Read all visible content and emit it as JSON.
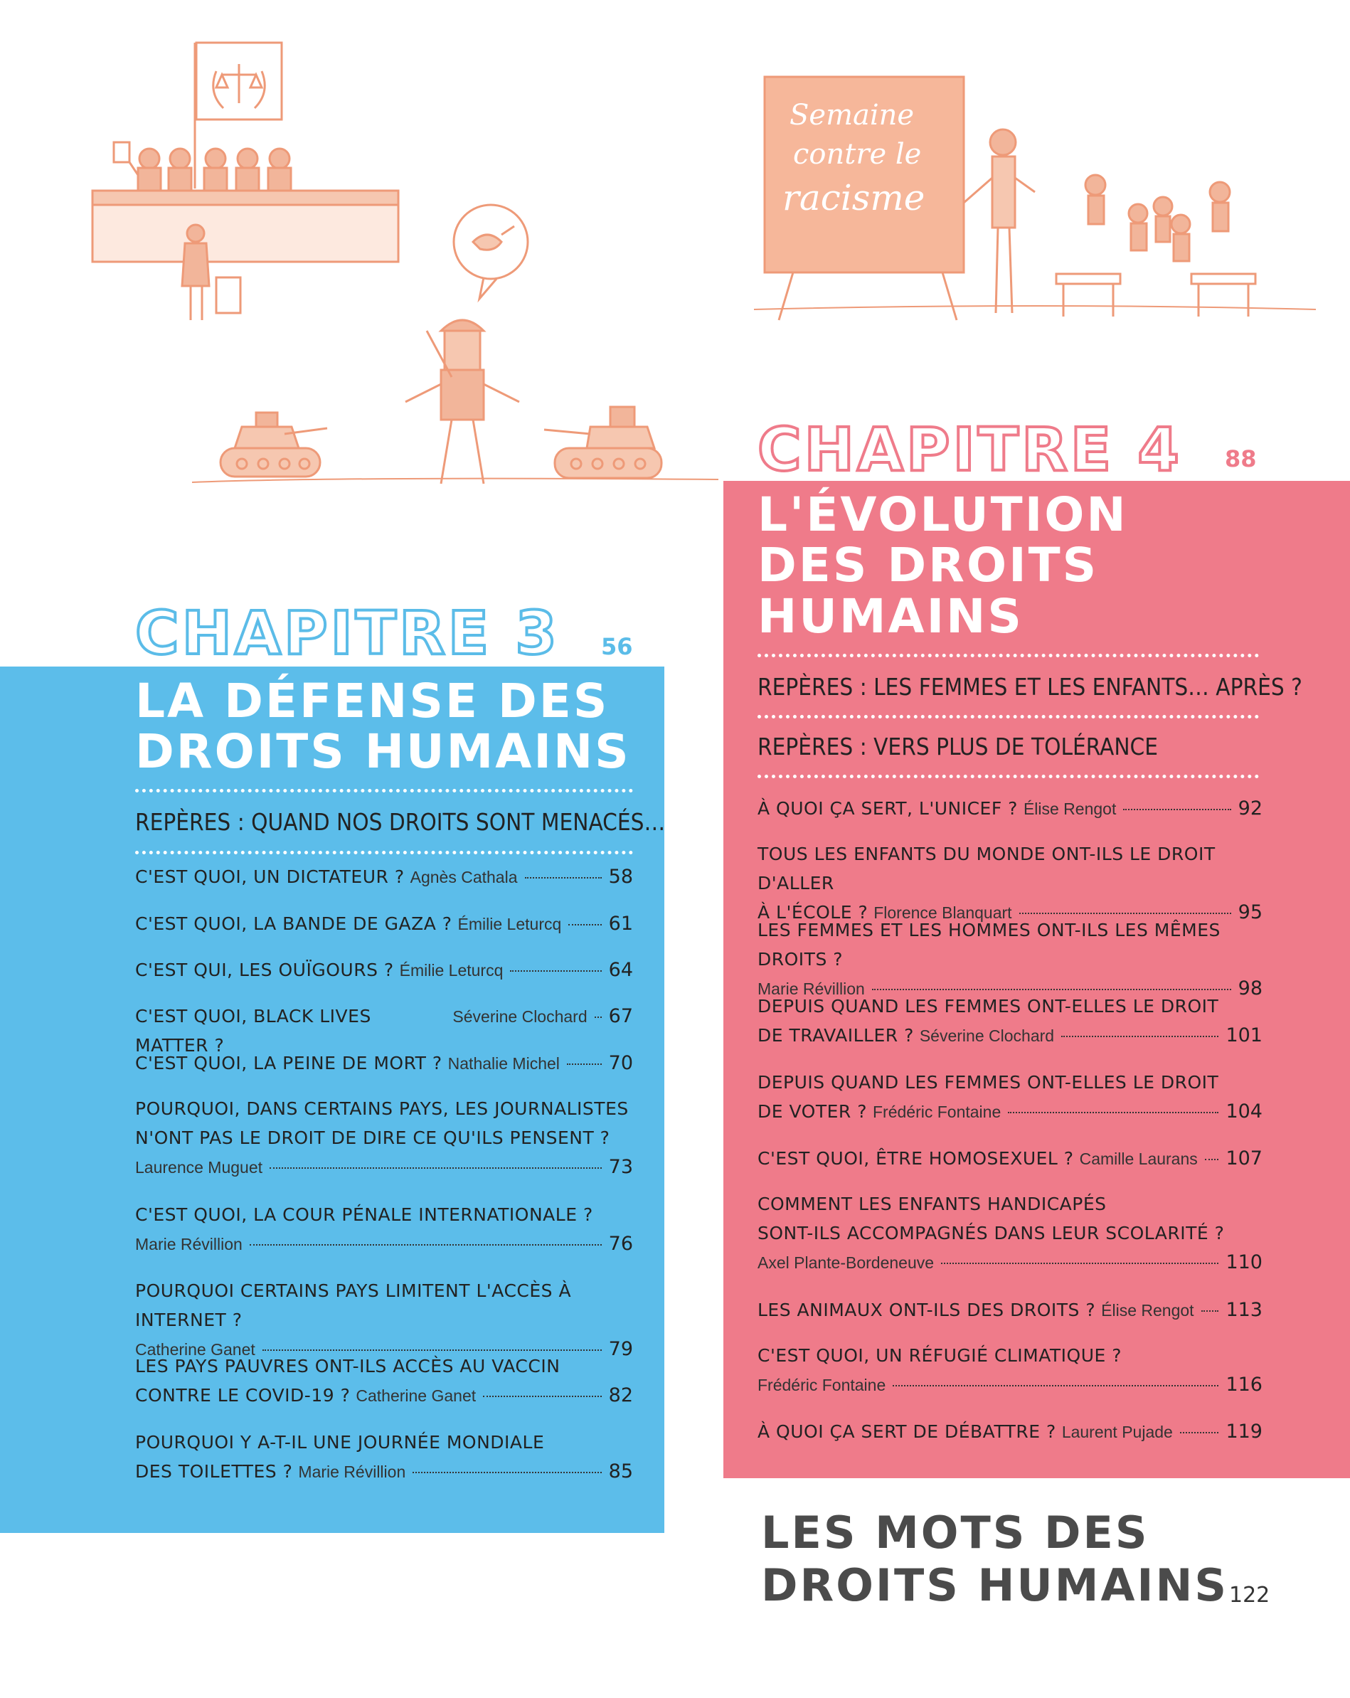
{
  "illustrations": {
    "court_flag_symbol": "scales-of-justice",
    "peace_bubble_symbol": "dove-with-olive-branch",
    "sign_text_lines": [
      "Semaine",
      "contre le",
      "racisme"
    ]
  },
  "colors": {
    "blue": "#5cbdea",
    "pink": "#ef7b8a",
    "illustration": "#ee9a78"
  },
  "chapter3": {
    "title": "CHAPITRE 3",
    "page": "56",
    "heading_line1": "LA DÉFENSE DES",
    "heading_line2": "DROITS HUMAINS",
    "repere": "REPÈRES : QUAND NOS DROITS SONT MENACÉS…",
    "entries": [
      {
        "q": "C'est quoi, un dictateur ?",
        "author": "Agnès Cathala",
        "page": "58"
      },
      {
        "q": "C'est quoi, la bande de Gaza ?",
        "author": "Émilie Leturcq",
        "page": "61"
      },
      {
        "q": "C'est qui, les Ouïgours ?",
        "author": "Émilie Leturcq",
        "page": "64"
      },
      {
        "q": "C'est quoi, Black Lives Matter ?",
        "author": "Séverine Clochard",
        "page": "67"
      },
      {
        "q": "C'est quoi, la peine de mort ?",
        "author": "Nathalie Michel",
        "page": "70"
      },
      {
        "q1": "Pourquoi, dans certains pays, les journalistes",
        "q2": "n'ont pas le droit de dire ce qu'ils pensent ?",
        "author": "Laurence Muguet",
        "page": "73"
      },
      {
        "q1": "C'est quoi, la Cour pénale internationale ?",
        "author": "Marie Révillion",
        "page": "76"
      },
      {
        "q1": "Pourquoi certains pays limitent l'accès à Internet ?",
        "author": "Catherine Ganet",
        "page": "79"
      },
      {
        "q1": "Les pays pauvres ont-ils accès au vaccin",
        "q2": "contre le Covid-19 ?",
        "author": "Catherine Ganet",
        "page": "82"
      },
      {
        "q1": "Pourquoi y a-t-il une journée mondiale",
        "q2": "des toilettes ?",
        "author": "Marie Révillion",
        "page": "85"
      }
    ]
  },
  "chapter4": {
    "title": "CHAPITRE 4",
    "page": "88",
    "heading_line1": "L'ÉVOLUTION",
    "heading_line2": "DES DROITS",
    "heading_line3": "HUMAINS",
    "repere1": "REPÈRES : LES FEMMES ET LES ENFANTS… APRÈS ?",
    "repere2": "REPÈRES : VERS PLUS DE TOLÉRANCE",
    "entries": [
      {
        "q": "À quoi ça sert, l'Unicef ?",
        "author": "Élise Rengot",
        "page": "92"
      },
      {
        "q1": "Tous les enfants du monde ont-ils le droit d'aller",
        "q2": "à l'école ?",
        "author": "Florence Blanquart",
        "page": "95"
      },
      {
        "q1": "Les femmes et les hommes ont-ils les mêmes droits ?",
        "author": "Marie Révillion",
        "page": "98"
      },
      {
        "q1": "Depuis quand les femmes ont-elles le droit",
        "q2": "de travailler ?",
        "author": "Séverine Clochard",
        "page": "101"
      },
      {
        "q1": "Depuis quand les femmes ont-elles le droit",
        "q2": "de voter ?",
        "author": "Frédéric Fontaine",
        "page": "104"
      },
      {
        "q": "C'est quoi, être homosexuel ?",
        "author": "Camille Laurans",
        "page": "107"
      },
      {
        "q1": "Comment les enfants handicapés",
        "q2": "sont-ils accompagnés dans leur scolarité ?",
        "author": "Axel Plante-Bordeneuve",
        "page": "110"
      },
      {
        "q": "Les animaux ont-ils des droits ?",
        "author": "Élise Rengot",
        "page": "113"
      },
      {
        "q1": "C'est quoi, un réfugié climatique ?",
        "author": "Frédéric Fontaine",
        "page": "116"
      },
      {
        "q": "À quoi ça sert de débattre ?",
        "author": "Laurent Pujade",
        "page": "119"
      }
    ]
  },
  "glossary": {
    "line1": "LES MOTS DES",
    "line2": "DROITS HUMAINS",
    "page": "122"
  }
}
